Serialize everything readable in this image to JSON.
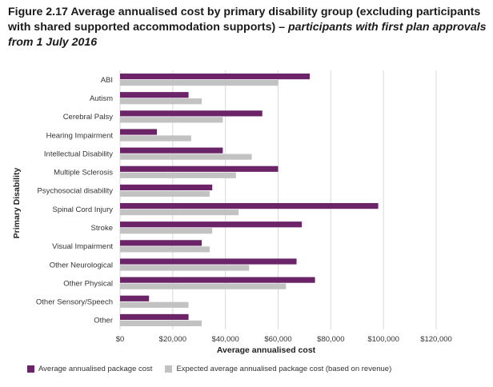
{
  "title": {
    "bold": "Figure 2.17 Average annualised cost by primary disability group (excluding participants with shared supported accommodation supports) – ",
    "italic": "participants with first plan approvals from 1 July 2016"
  },
  "colors": {
    "actual": "#6b2468",
    "expected": "#c2c2c2",
    "grid": "#d9d9d9"
  },
  "chart_data": {
    "type": "bar",
    "orientation": "horizontal",
    "title": "Average annualised cost by primary disability group (excluding participants with shared supported accommodation supports) – participants with first plan approvals from 1 July 2016",
    "xlabel": "Average annualised  cost",
    "ylabel": "Primary Disability",
    "xlim": [
      0,
      120000
    ],
    "xticks": [
      0,
      20000,
      40000,
      60000,
      80000,
      100000,
      120000
    ],
    "xtick_labels": [
      "$0",
      "$20,000",
      "$40,000",
      "$60,000",
      "$80,000",
      "$100,000",
      "$120,000"
    ],
    "grid": true,
    "legend_position": "bottom",
    "categories": [
      "ABI",
      "Autism",
      "Cerebral Palsy",
      "Hearing Impairment",
      "Intellectual Disability",
      "Multiple Sclerosis",
      "Psychosocial disability",
      "Spinal Cord Injury",
      "Stroke",
      "Visual Impairment",
      "Other Neurological",
      "Other Physical",
      "Other Sensory/Speech",
      "Other"
    ],
    "series": [
      {
        "name": "Average annualised package cost",
        "values": [
          72000,
          26000,
          54000,
          14000,
          39000,
          60000,
          35000,
          98000,
          69000,
          31000,
          67000,
          74000,
          11000,
          26000
        ]
      },
      {
        "name": "Expected average annualised package cost (based on revenue)",
        "values": [
          60000,
          31000,
          39000,
          27000,
          50000,
          44000,
          34000,
          45000,
          35000,
          34000,
          49000,
          63000,
          26000,
          31000
        ]
      }
    ]
  }
}
